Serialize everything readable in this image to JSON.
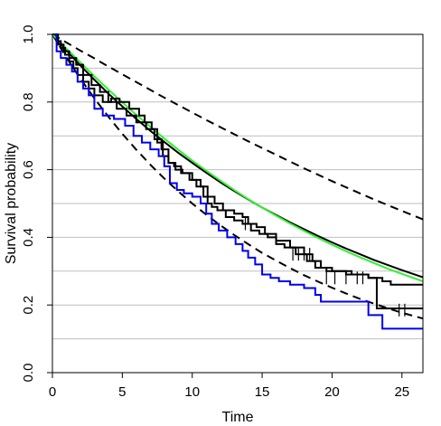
{
  "chart_data": {
    "type": "line",
    "xlabel": "Time",
    "ylabel": "Survival probability",
    "xlim": [
      0,
      26.5
    ],
    "ylim": [
      0,
      1
    ],
    "xticks": [
      0,
      5,
      10,
      15,
      20,
      25
    ],
    "yticks": [
      0.0,
      0.2,
      0.4,
      0.6,
      0.8,
      1.0
    ],
    "ytick_labels": [
      "0.0",
      "0.2",
      "0.4",
      "0.6",
      "0.8",
      "1.0"
    ],
    "grid": "horizontal",
    "grid_y": [
      0.1,
      0.2,
      0.3,
      0.4,
      0.5,
      0.6,
      0.7,
      0.8,
      0.9
    ],
    "colors": {
      "grid": "#bfbfbf",
      "green": "#33ee33",
      "blue": "#0000ee",
      "black": "#000000"
    },
    "series": [
      {
        "color": "#000000",
        "style": "dashed",
        "width": 2,
        "x": [
          0,
          1,
          2,
          3,
          4,
          5,
          6,
          7,
          8,
          9,
          10,
          11,
          12,
          13,
          14,
          15,
          16,
          17,
          18,
          19,
          20,
          21,
          22,
          23,
          24,
          25,
          26.5
        ],
        "y": [
          1.0,
          0.976,
          0.952,
          0.929,
          0.905,
          0.882,
          0.859,
          0.836,
          0.813,
          0.791,
          0.769,
          0.747,
          0.726,
          0.705,
          0.684,
          0.664,
          0.644,
          0.624,
          0.604,
          0.585,
          0.566,
          0.548,
          0.53,
          0.512,
          0.495,
          0.478,
          0.453
        ]
      },
      {
        "color": "#000000",
        "style": "dashed",
        "width": 2,
        "x": [
          0,
          1,
          2,
          3,
          4,
          5,
          6,
          7,
          8,
          9,
          10,
          11,
          12,
          13,
          14,
          15,
          16,
          17,
          18,
          19,
          20,
          21,
          22,
          23,
          24,
          25,
          26.5
        ],
        "y": [
          1.0,
          0.932,
          0.869,
          0.811,
          0.757,
          0.706,
          0.659,
          0.615,
          0.574,
          0.536,
          0.5,
          0.467,
          0.436,
          0.407,
          0.38,
          0.354,
          0.331,
          0.309,
          0.288,
          0.269,
          0.251,
          0.234,
          0.218,
          0.204,
          0.19,
          0.177,
          0.16
        ]
      },
      {
        "color": "#000000",
        "style": "solid",
        "width": 2,
        "x": [
          0,
          1,
          2,
          3,
          4,
          5,
          6,
          7,
          8,
          9,
          10,
          11,
          12,
          13,
          14,
          15,
          16,
          17,
          18,
          19,
          20,
          21,
          22,
          23,
          24,
          25,
          26.5
        ],
        "y": [
          1.0,
          0.953,
          0.908,
          0.866,
          0.825,
          0.787,
          0.75,
          0.715,
          0.682,
          0.65,
          0.62,
          0.591,
          0.563,
          0.537,
          0.512,
          0.488,
          0.466,
          0.444,
          0.424,
          0.404,
          0.385,
          0.367,
          0.35,
          0.333,
          0.318,
          0.303,
          0.282
        ]
      },
      {
        "color": "#33ee33",
        "style": "solid",
        "width": 2,
        "x": [
          0,
          1,
          2,
          3,
          4,
          5,
          6,
          7,
          8,
          9,
          10,
          11,
          12,
          13,
          14,
          15,
          16,
          17,
          18,
          19,
          20,
          21,
          22,
          23,
          24,
          25,
          26.5
        ],
        "y": [
          1.0,
          0.958,
          0.917,
          0.876,
          0.837,
          0.799,
          0.762,
          0.727,
          0.692,
          0.659,
          0.627,
          0.597,
          0.568,
          0.54,
          0.513,
          0.488,
          0.464,
          0.441,
          0.419,
          0.398,
          0.378,
          0.359,
          0.341,
          0.324,
          0.307,
          0.292,
          0.27
        ]
      },
      {
        "color": "#000000",
        "style": "step",
        "width": 2,
        "x": [
          0,
          0.3,
          0.6,
          0.9,
          1.2,
          1.5,
          1.8,
          2.2,
          2.6,
          3.0,
          3.6,
          4.2,
          4.8,
          5.5,
          6.2,
          6.6,
          7.1,
          7.5,
          7.9,
          8.3,
          8.7,
          9.2,
          9.8,
          10.3,
          10.8,
          11.1,
          11.4,
          11.8,
          12.4,
          13.0,
          13.6,
          14.2,
          14.8,
          15.4,
          16.0,
          16.6,
          17.4,
          18.2,
          18.8,
          19.6,
          21.0,
          22.6,
          23.6,
          24.2,
          26.5
        ],
        "y": [
          1.0,
          0.98,
          0.96,
          0.94,
          0.92,
          0.9,
          0.88,
          0.86,
          0.84,
          0.82,
          0.8,
          0.81,
          0.8,
          0.78,
          0.76,
          0.74,
          0.72,
          0.68,
          0.64,
          0.62,
          0.61,
          0.59,
          0.57,
          0.55,
          0.52,
          0.5,
          0.49,
          0.48,
          0.46,
          0.45,
          0.44,
          0.42,
          0.41,
          0.4,
          0.38,
          0.37,
          0.35,
          0.33,
          0.31,
          0.3,
          0.29,
          0.28,
          0.27,
          0.26,
          0.26
        ]
      },
      {
        "color": "#000000",
        "style": "step",
        "width": 2,
        "x": [
          0,
          0.4,
          0.8,
          1.2,
          1.7,
          2.2,
          2.8,
          3.4,
          4.0,
          4.6,
          5.3,
          6.0,
          6.7,
          7.3,
          7.8,
          8.3,
          8.8,
          9.3,
          10.0,
          10.6,
          11.1,
          11.6,
          12.2,
          13.0,
          13.6,
          14.0,
          14.6,
          15.2,
          16.0,
          17.0,
          18.0,
          18.6,
          19.2,
          20.0,
          21.4,
          22.6,
          23.2,
          26.5
        ],
        "y": [
          1.0,
          0.97,
          0.95,
          0.93,
          0.91,
          0.88,
          0.85,
          0.83,
          0.8,
          0.78,
          0.76,
          0.74,
          0.72,
          0.69,
          0.66,
          0.62,
          0.6,
          0.59,
          0.57,
          0.55,
          0.52,
          0.5,
          0.48,
          0.47,
          0.46,
          0.44,
          0.43,
          0.41,
          0.39,
          0.37,
          0.35,
          0.33,
          0.31,
          0.3,
          0.29,
          0.28,
          0.19,
          0.19
        ]
      },
      {
        "color": "#0000ee",
        "style": "step",
        "width": 2,
        "x": [
          0,
          0.3,
          0.6,
          1.0,
          1.4,
          1.8,
          2.2,
          2.6,
          3.0,
          3.6,
          4.4,
          5.2,
          5.8,
          6.4,
          7.0,
          7.6,
          8.0,
          8.4,
          8.9,
          9.4,
          10.0,
          10.6,
          11.0,
          11.4,
          11.9,
          12.5,
          13.1,
          13.6,
          14.0,
          14.5,
          15.0,
          15.6,
          16.2,
          17.0,
          18.0,
          18.8,
          19.2,
          22.6,
          23.6,
          26.5
        ],
        "y": [
          1.0,
          0.95,
          0.93,
          0.91,
          0.89,
          0.86,
          0.84,
          0.82,
          0.78,
          0.76,
          0.75,
          0.73,
          0.7,
          0.68,
          0.66,
          0.64,
          0.61,
          0.56,
          0.54,
          0.53,
          0.52,
          0.5,
          0.47,
          0.44,
          0.42,
          0.4,
          0.38,
          0.36,
          0.34,
          0.32,
          0.29,
          0.28,
          0.27,
          0.26,
          0.25,
          0.23,
          0.21,
          0.17,
          0.13,
          0.13
        ]
      }
    ],
    "censor_marks": [
      {
        "x": [
          13.8,
          17.2,
          17.6,
          18.0,
          18.4,
          19.6,
          20.2,
          21.0,
          21.8,
          22.2,
          24.8,
          25.2
        ],
        "y": [
          0.44,
          0.35,
          0.35,
          0.35,
          0.35,
          0.28,
          0.28,
          0.28,
          0.28,
          0.28,
          0.185,
          0.185
        ]
      }
    ]
  }
}
